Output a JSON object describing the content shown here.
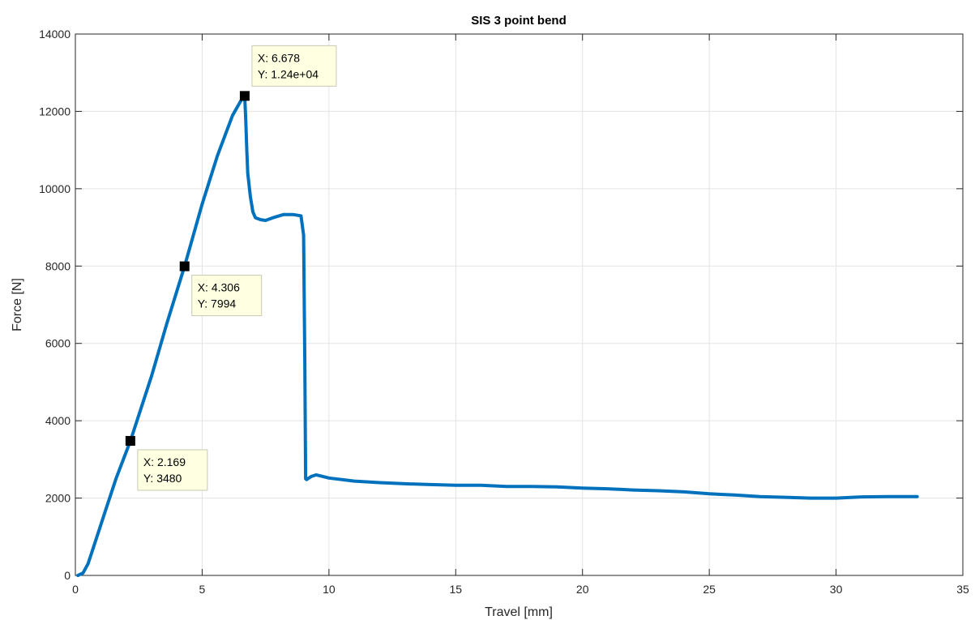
{
  "chart_data": {
    "type": "line",
    "title": "SIS 3 point bend",
    "xlabel": "Travel [mm]",
    "ylabel": "Force [N]",
    "xlim": [
      0,
      35
    ],
    "ylim": [
      0,
      14000
    ],
    "xticks": [
      0,
      5,
      10,
      15,
      20,
      25,
      30,
      35
    ],
    "yticks": [
      0,
      2000,
      4000,
      6000,
      8000,
      10000,
      12000,
      14000
    ],
    "xtick_labels": [
      "0",
      "5",
      "10",
      "15",
      "20",
      "25",
      "30",
      "35"
    ],
    "ytick_labels": [
      "0",
      "2000",
      "4000",
      "6000",
      "8000",
      "10000",
      "12000",
      "14000"
    ],
    "grid": true,
    "line_color": "#0072BD",
    "series": [
      {
        "x": [
          0.1,
          0.3,
          0.5,
          0.8,
          1.2,
          1.6,
          2.169,
          3.0,
          3.6,
          4.306,
          5.0,
          5.6,
          6.2,
          6.55,
          6.678,
          6.72,
          6.76,
          6.8,
          6.9,
          7.0,
          7.1,
          7.3,
          7.5,
          7.8,
          8.2,
          8.6,
          8.9,
          9.0,
          9.05,
          9.08,
          9.12,
          9.3,
          9.5,
          10.0,
          11.0,
          12.0,
          13.0,
          14.0,
          15.0,
          16.0,
          17.0,
          18.0,
          19.0,
          20.0,
          21.0,
          22.0,
          23.0,
          24.0,
          25.0,
          26.0,
          27.0,
          28.0,
          29.0,
          30.0,
          31.0,
          32.0,
          33.2
        ],
        "y": [
          0,
          60,
          300,
          900,
          1700,
          2500,
          3480,
          5150,
          6500,
          7994,
          9600,
          10850,
          11900,
          12300,
          12400,
          11800,
          11000,
          10400,
          9800,
          9400,
          9250,
          9200,
          9180,
          9250,
          9330,
          9330,
          9300,
          8800,
          5500,
          2500,
          2480,
          2560,
          2600,
          2520,
          2440,
          2400,
          2370,
          2350,
          2330,
          2330,
          2300,
          2300,
          2290,
          2260,
          2240,
          2210,
          2190,
          2160,
          2110,
          2080,
          2040,
          2020,
          2000,
          2000,
          2030,
          2040,
          2040
        ]
      }
    ],
    "annotations": [
      {
        "x": 6.678,
        "y": 12400,
        "label_x": "X: 6.678",
        "label_y": "Y: 1.24e+04",
        "placement": "top-right"
      },
      {
        "x": 4.306,
        "y": 7994,
        "label_x": "X: 4.306",
        "label_y": "Y: 7994",
        "placement": "bottom-right"
      },
      {
        "x": 2.169,
        "y": 3480,
        "label_x": "X: 2.169",
        "label_y": "Y: 3480",
        "placement": "bottom-right"
      }
    ]
  }
}
